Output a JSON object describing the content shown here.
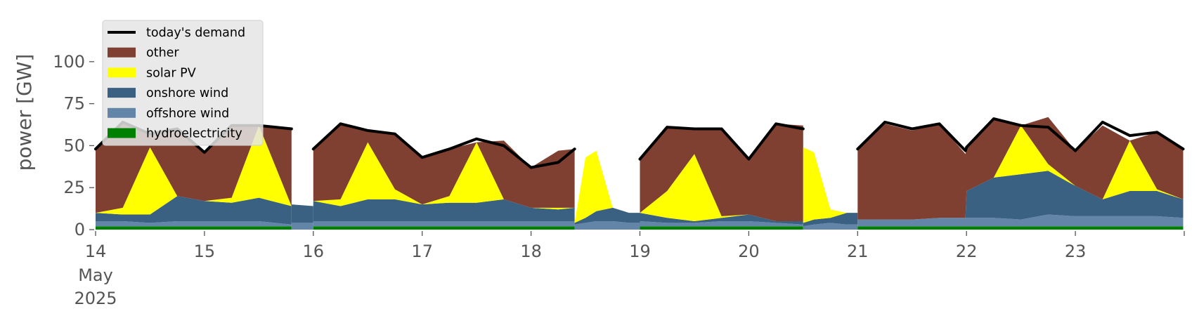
{
  "chart_data": {
    "type": "area",
    "title": "",
    "xlabel": "",
    "ylabel": "power [GW]",
    "ylim": [
      0,
      120
    ],
    "yticks": [
      0,
      25,
      50,
      75,
      100
    ],
    "xlim_days": [
      14,
      24
    ],
    "x_unit": "day of May 2025 (fractional)",
    "x_tick_labels": [
      {
        "x": 14,
        "label": "14",
        "sub": [
          "May",
          "2025"
        ]
      },
      {
        "x": 15,
        "label": "15"
      },
      {
        "x": 16,
        "label": "16"
      },
      {
        "x": 17,
        "label": "17"
      },
      {
        "x": 18,
        "label": "18"
      },
      {
        "x": 19,
        "label": "19"
      },
      {
        "x": 20,
        "label": "20"
      },
      {
        "x": 21,
        "label": "21"
      },
      {
        "x": 22,
        "label": "22"
      },
      {
        "x": 23,
        "label": "23"
      }
    ],
    "grid": false,
    "legend_position": "upper-left",
    "stack_order": [
      "hydroelectricity",
      "offshore wind",
      "onshore wind",
      "solar PV",
      "other"
    ],
    "series": [
      {
        "name": "today's demand",
        "kind": "line",
        "color": "#000000"
      },
      {
        "name": "other",
        "kind": "area",
        "color": "#7f3f31"
      },
      {
        "name": "solar PV",
        "kind": "area",
        "color": "#ffff00"
      },
      {
        "name": "onshore wind",
        "kind": "area",
        "color": "#3a6182"
      },
      {
        "name": "offshore wind",
        "kind": "area",
        "color": "#6386a8"
      },
      {
        "name": "hydroelectricity",
        "kind": "area",
        "color": "#008000"
      }
    ],
    "segments": [
      {
        "x": [
          14.0,
          14.25,
          14.5,
          14.75,
          15.0,
          15.25,
          15.5,
          15.8
        ],
        "hydro": [
          2,
          2,
          2,
          2,
          2,
          2,
          2,
          2
        ],
        "offshore": [
          3,
          3,
          2,
          3,
          3,
          3,
          3,
          1
        ],
        "onshore": [
          5,
          4,
          5,
          15,
          12,
          11,
          14,
          11
        ],
        "solar": [
          0,
          4,
          40,
          0,
          0,
          3,
          43,
          0
        ],
        "other": [
          38,
          51,
          8,
          40,
          29,
          43,
          0,
          46
        ],
        "demand": [
          48,
          64,
          57,
          60,
          46,
          62,
          62,
          60
        ]
      },
      {
        "x": [
          15.8,
          16.0
        ],
        "hydro": [
          0,
          0
        ],
        "offshore": [
          4,
          4
        ],
        "onshore": [
          11,
          10
        ],
        "solar": [
          0,
          0
        ],
        "other": [
          0,
          0
        ],
        "demand": [
          null,
          null
        ]
      },
      {
        "x": [
          16.0,
          16.25,
          16.5,
          16.75,
          17.0,
          17.25,
          17.5,
          17.75,
          18.0,
          18.25,
          18.4
        ],
        "hydro": [
          2,
          2,
          2,
          2,
          2,
          2,
          2,
          2,
          2,
          2,
          2
        ],
        "offshore": [
          3,
          3,
          3,
          3,
          3,
          3,
          3,
          3,
          3,
          3,
          3
        ],
        "onshore": [
          12,
          9,
          13,
          13,
          10,
          11,
          11,
          13,
          8,
          7,
          8
        ],
        "solar": [
          0,
          4,
          34,
          6,
          0,
          4,
          36,
          0,
          0,
          1,
          0
        ],
        "other": [
          31,
          45,
          7,
          33,
          28,
          28,
          0,
          35,
          24,
          34,
          35
        ],
        "demand": [
          48,
          63,
          59,
          57,
          43,
          48,
          54,
          50,
          37,
          40,
          48
        ]
      },
      {
        "x": [
          18.4,
          18.5,
          18.6,
          18.75,
          18.9,
          19.0
        ],
        "hydro": [
          0,
          0,
          0,
          0,
          0,
          0
        ],
        "offshore": [
          3,
          4,
          5,
          5,
          4,
          4
        ],
        "onshore": [
          1,
          3,
          6,
          8,
          6,
          6
        ],
        "solar": [
          0,
          36,
          36,
          0,
          0,
          0
        ],
        "other": [
          0,
          0,
          0,
          0,
          0,
          0
        ],
        "demand": [
          null,
          null,
          null,
          null,
          null,
          null
        ]
      },
      {
        "x": [
          19.0,
          19.25,
          19.5,
          19.75,
          20.0,
          20.25,
          20.5
        ],
        "hydro": [
          2,
          2,
          2,
          2,
          2,
          2,
          2
        ],
        "offshore": [
          3,
          2,
          2,
          3,
          3,
          2,
          1
        ],
        "onshore": [
          5,
          3,
          1,
          2,
          4,
          1,
          2
        ],
        "solar": [
          0,
          16,
          40,
          1,
          0,
          0,
          0
        ],
        "other": [
          32,
          38,
          15,
          52,
          33,
          58,
          57
        ],
        "demand": [
          42,
          61,
          60,
          60,
          42,
          63,
          60
        ]
      },
      {
        "x": [
          20.5,
          20.6,
          20.75,
          20.9,
          21.0
        ],
        "hydro": [
          0,
          0,
          0,
          0,
          0
        ],
        "offshore": [
          2,
          3,
          4,
          3,
          3
        ],
        "onshore": [
          2,
          3,
          3,
          7,
          7
        ],
        "solar": [
          45,
          40,
          5,
          0,
          0
        ],
        "other": [
          0,
          0,
          0,
          0,
          0
        ],
        "demand": [
          null,
          null,
          null,
          null,
          null
        ]
      },
      {
        "x": [
          21.0,
          21.25,
          21.5,
          21.75,
          21.99,
          22.0,
          22.25,
          22.5,
          22.75,
          23.0,
          23.25,
          23.5,
          23.75,
          23.99
        ],
        "hydro": [
          2,
          2,
          2,
          2,
          2,
          2,
          2,
          2,
          2,
          2,
          2,
          2,
          2,
          2
        ],
        "offshore": [
          4,
          4,
          4,
          5,
          5,
          5,
          5,
          4,
          7,
          6,
          6,
          6,
          6,
          5
        ],
        "onshore": [
          0,
          0,
          0,
          0,
          0,
          16,
          24,
          27,
          26,
          18,
          10,
          15,
          15,
          11
        ],
        "solar": [
          0,
          0,
          0,
          0,
          0,
          0,
          0,
          29,
          4,
          0,
          0,
          30,
          1,
          0
        ],
        "other": [
          42,
          57,
          53,
          56,
          38,
          26,
          35,
          0,
          28,
          21,
          44,
          0,
          34,
          30
        ],
        "demand": [
          48,
          64,
          60,
          63,
          47,
          49,
          66,
          62,
          61,
          47,
          64,
          56,
          58,
          48
        ]
      }
    ]
  }
}
